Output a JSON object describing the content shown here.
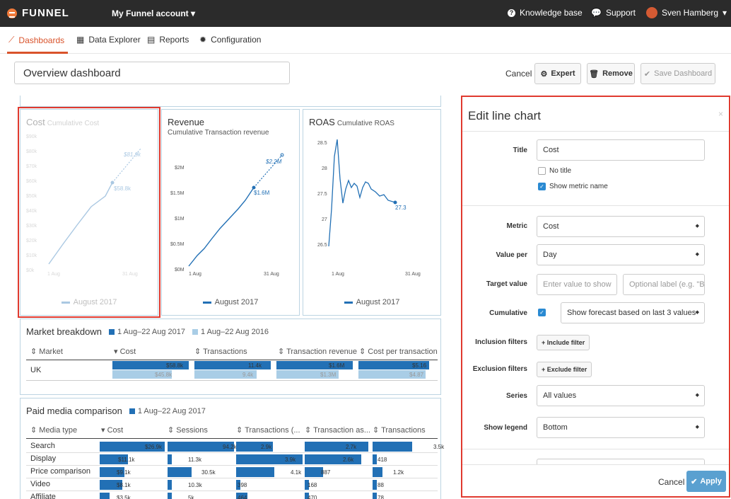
{
  "topbar": {
    "logo": "FUNNEL",
    "account": "My Funnel account",
    "knowledge": "Knowledge base",
    "support": "Support",
    "user": "Sven Hamberg"
  },
  "nav": {
    "tabs": [
      "Dashboards",
      "Data Explorer",
      "Reports",
      "Configuration"
    ]
  },
  "dashboard": {
    "title": "Overview dashboard",
    "cancel": "Cancel",
    "expert": "Expert",
    "remove": "Remove",
    "save": "Save Dashboard"
  },
  "cards": {
    "cost": {
      "title": "Cost",
      "subtitle": "Cumulative Cost",
      "ylabels": [
        "$90k",
        "$80k",
        "$70k",
        "$60k",
        "$50k",
        "$40k",
        "$30k",
        "$20k",
        "$10k",
        "$0k"
      ],
      "x_start": "1 Aug",
      "x_end": "31 Aug",
      "value": "$58.8k",
      "forecast": "$81.9k",
      "legend": "August 2017"
    },
    "revenue": {
      "title": "Revenue",
      "subtitle": "Cumulative Transaction revenue",
      "ylabels": [
        "$2M",
        "$1.5M",
        "$1M",
        "$0.5M",
        "$0M"
      ],
      "x_start": "1 Aug",
      "x_end": "31 Aug",
      "value": "$1.6M",
      "forecast": "$2.2M",
      "legend": "August 2017"
    },
    "roas": {
      "title": "ROAS",
      "subtitle": "Cumulative ROAS",
      "ylabels": [
        "28.5",
        "28",
        "27.5",
        "27",
        "26.5"
      ],
      "x_start": "1 Aug",
      "x_end": "31 Aug",
      "value": "27.3",
      "legend": "August 2017"
    }
  },
  "market": {
    "title": "Market breakdown",
    "legend1": "1 Aug–22 Aug 2017",
    "legend2": "1 Aug–22 Aug 2016",
    "headers": [
      "Market",
      "Cost",
      "Transactions",
      "Transaction revenue",
      "Cost per transaction"
    ],
    "row": {
      "name": "UK",
      "cost": "$58.8k",
      "cost_prev": "$45.8k",
      "tx": "11.4k",
      "tx_prev": "9.4k",
      "rev": "$1.6M",
      "rev_prev": "$1.3M",
      "cpt": "$5.16",
      "cpt_prev": "$4.87"
    }
  },
  "paid": {
    "title": "Paid media comparison",
    "legend1": "1 Aug–22 Aug 2017",
    "headers": [
      "Media type",
      "Cost",
      "Sessions",
      "Transactions (...",
      "Transaction as...",
      "Transactions"
    ],
    "rows": [
      {
        "name": "Search",
        "v": [
          "$26.9k",
          "94.2k",
          "2.9k",
          "2.7k",
          "3.5k"
        ]
      },
      {
        "name": "Display",
        "v": [
          "$11.1k",
          "11.3k",
          "3.9k",
          "2.6k",
          "418"
        ]
      },
      {
        "name": "Price comparison",
        "v": [
          "$9.1k",
          "30.5k",
          "4.1k",
          "887",
          "1.2k"
        ]
      },
      {
        "name": "Video",
        "v": [
          "$8.1k",
          "10.3k",
          "398",
          "168",
          "88"
        ]
      },
      {
        "name": "Affiliate",
        "v": [
          "$3.5k",
          "5k",
          "464",
          "470",
          "78"
        ]
      }
    ]
  },
  "editor": {
    "title": "Edit line chart",
    "close": "×",
    "title_label": "Title",
    "title_value": "Cost",
    "no_title": "No title",
    "show_metric": "Show metric name",
    "metric_label": "Metric",
    "metric_value": "Cost",
    "valueper_label": "Value per",
    "valueper_value": "Day",
    "target_label": "Target value",
    "target_ph": "Enter value to show",
    "target_label_ph": "Optional label (e.g. \"B",
    "cumulative_label": "Cumulative",
    "forecast_value": "Show forecast based on last 3 values",
    "incl_label": "Inclusion filters",
    "incl_btn": "Include filter",
    "excl_label": "Exclusion filters",
    "excl_btn": "Exclude filter",
    "series_label": "Series",
    "series_value": "All values",
    "legend_label": "Show legend",
    "legend_value": "Bottom",
    "cancel": "Cancel",
    "apply": "Apply"
  }
}
